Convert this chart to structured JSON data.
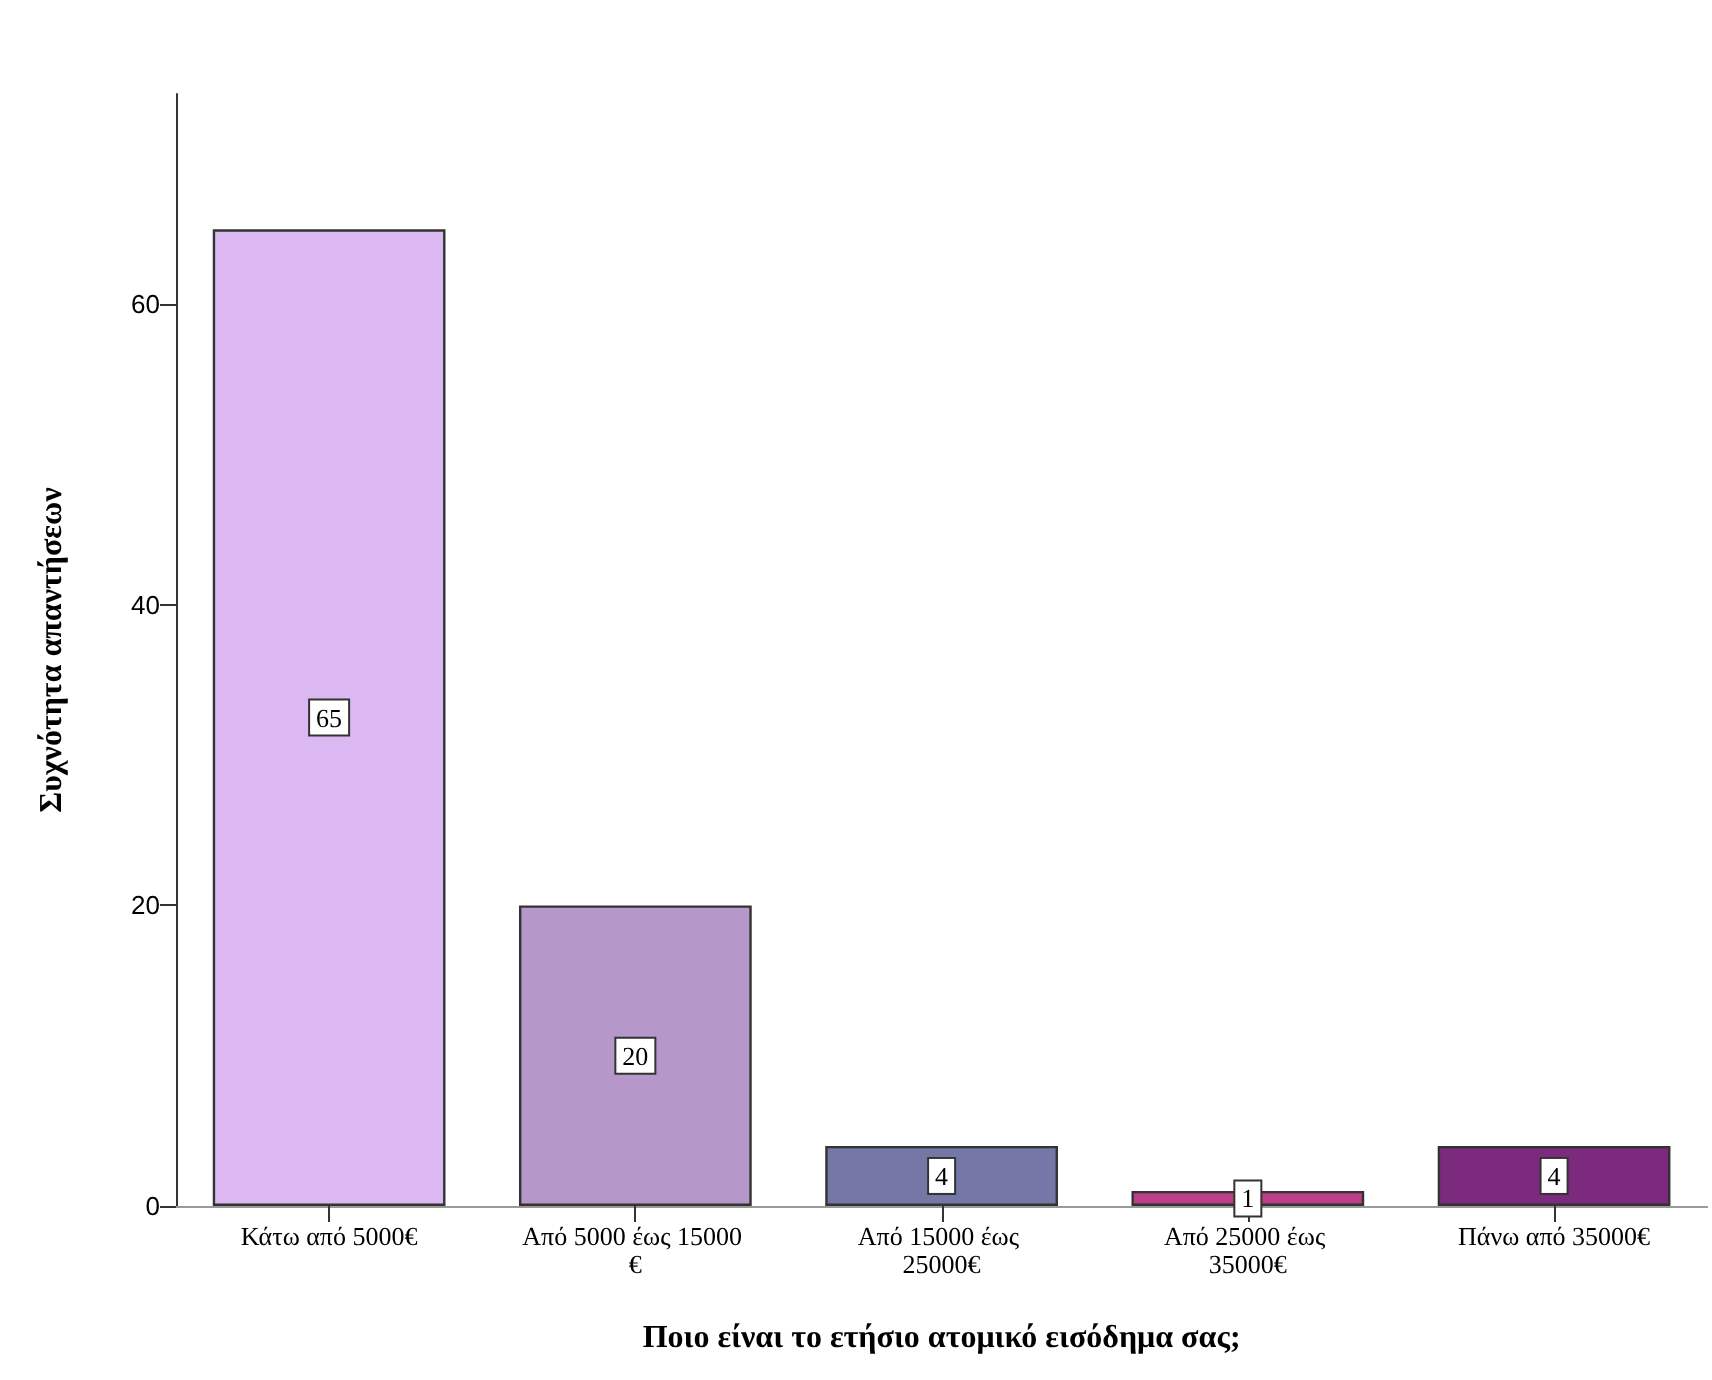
{
  "chart_data": {
    "type": "bar",
    "xlabel": "Ποιο είναι το ετήσιο ατομικό εισόδημα σας;",
    "ylabel": "Συχνότητα απαντήσεων",
    "categories": [
      "Κάτω από 5000€",
      "Από 5000 έως 15000 €",
      "Από 15000 έως 25000€",
      "Από 25000 έως 35000€",
      "Πάνω από 35000€"
    ],
    "values": [
      65,
      20,
      4,
      1,
      4
    ],
    "colors": [
      "#dcb8f2",
      "#b598c9",
      "#7577a6",
      "#bb3e88",
      "#7c2a7e"
    ],
    "ylim": [
      0,
      74
    ],
    "yticks": [
      0,
      20,
      40,
      60
    ],
    "grid": false,
    "data_labels": true
  }
}
